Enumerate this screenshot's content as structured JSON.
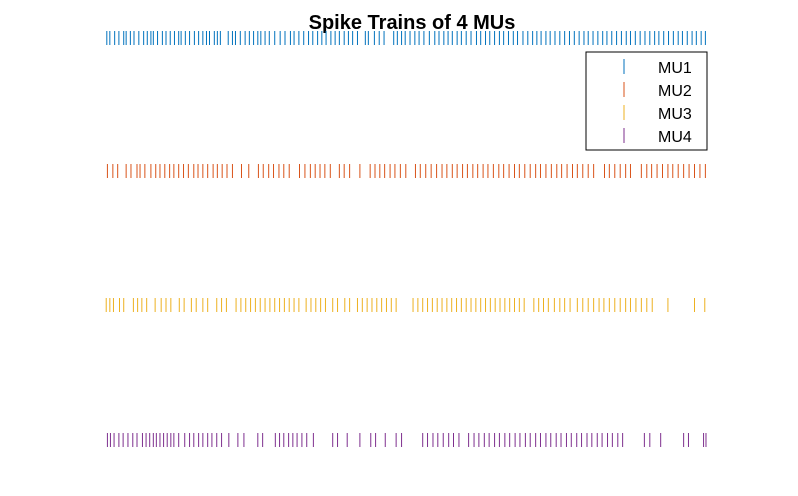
{
  "chart_data": {
    "type": "raster",
    "title": "Spike Trains of 4 MUs",
    "xlabel": "",
    "ylabel": "",
    "axes_visible": false,
    "grid": false,
    "legend_position": "top-right",
    "xlim": [
      0,
      100
    ],
    "series": [
      {
        "name": "MU1",
        "color": "#0072BD",
        "spikes": [
          0.3,
          0.8,
          1.6,
          2.3,
          3.1,
          3.5,
          4.2,
          4.8,
          5.6,
          6.4,
          7.0,
          7.6,
          8.0,
          8.7,
          9.5,
          10.1,
          10.8,
          11.5,
          12.2,
          12.6,
          13.3,
          14.0,
          14.8,
          15.5,
          16.2,
          16.8,
          17.3,
          18.1,
          18.6,
          19.1,
          20.4,
          21.1,
          21.6,
          22.4,
          23.2,
          23.9,
          24.6,
          25.3,
          25.8,
          26.5,
          27.2,
          28.1,
          29.0,
          29.8,
          30.7,
          31.3,
          32.1,
          32.9,
          33.7,
          34.4,
          35.2,
          35.9,
          36.6,
          37.4,
          38.1,
          38.8,
          39.6,
          40.3,
          41.0,
          41.8,
          43.1,
          43.6,
          44.6,
          45.4,
          46.2,
          47.8,
          48.4,
          49.1,
          49.7,
          50.5,
          51.3,
          52.0,
          52.8,
          53.7,
          54.6,
          55.3,
          56.1,
          56.8,
          57.5,
          58.3,
          59.0,
          59.8,
          60.6,
          61.5,
          62.2,
          63.0,
          63.7,
          64.5,
          65.3,
          66.0,
          66.8,
          67.6,
          68.3,
          69.2,
          70.0,
          70.8,
          71.5,
          72.2,
          73.0,
          73.7,
          74.5,
          75.3,
          76.1,
          76.9,
          77.7,
          78.5,
          79.3,
          80.0,
          80.8,
          81.6,
          82.4,
          83.1,
          83.9,
          84.7,
          85.5,
          86.3,
          87.0,
          87.8,
          88.6,
          89.4,
          90.2,
          91.0,
          91.7,
          92.5,
          93.3,
          94.1,
          94.9,
          95.6,
          96.4,
          97.2,
          97.9,
          98.7,
          99.4
        ]
      },
      {
        "name": "MU2",
        "color": "#D95319",
        "spikes": [
          0.4,
          1.3,
          2.1,
          3.5,
          4.3,
          5.3,
          5.8,
          6.6,
          7.6,
          8.4,
          9.1,
          9.9,
          10.7,
          11.4,
          12.2,
          13.0,
          13.8,
          14.7,
          15.4,
          16.2,
          17.0,
          17.9,
          18.6,
          19.4,
          20.2,
          21.1,
          22.6,
          23.8,
          25.4,
          26.2,
          27.1,
          27.9,
          28.8,
          29.6,
          30.5,
          32.2,
          33.1,
          34.0,
          34.8,
          35.6,
          36.4,
          37.3,
          38.8,
          39.6,
          40.5,
          42.2,
          43.9,
          44.7,
          45.5,
          46.3,
          47.2,
          48.0,
          48.9,
          49.8,
          51.4,
          52.2,
          53.1,
          54.0,
          54.9,
          55.8,
          56.6,
          57.5,
          58.3,
          59.2,
          60.0,
          60.9,
          61.7,
          62.6,
          63.4,
          64.3,
          65.2,
          66.0,
          66.9,
          67.8,
          68.6,
          69.5,
          70.4,
          71.3,
          72.1,
          73.0,
          73.9,
          74.8,
          75.6,
          76.5,
          77.4,
          78.2,
          79.1,
          80.0,
          80.9,
          82.7,
          83.5,
          84.4,
          85.3,
          86.2,
          87.0,
          88.8,
          89.7,
          90.5,
          91.4,
          92.3,
          93.2,
          94.0,
          94.9,
          95.8,
          96.7,
          97.6,
          98.5,
          99.4
        ]
      },
      {
        "name": "MU3",
        "color": "#EDB120",
        "spikes": [
          0.2,
          0.8,
          1.4,
          2.4,
          3.1,
          4.7,
          5.4,
          6.1,
          6.9,
          8.3,
          9.3,
          10.1,
          10.9,
          12.3,
          13.1,
          14.3,
          15.1,
          16.2,
          17.0,
          18.5,
          19.3,
          20.1,
          21.7,
          22.5,
          23.3,
          24.1,
          24.9,
          25.7,
          26.5,
          27.3,
          28.1,
          28.9,
          29.7,
          30.5,
          31.3,
          32.1,
          33.3,
          34.1,
          34.9,
          35.7,
          36.5,
          37.7,
          38.5,
          39.7,
          40.5,
          41.8,
          42.6,
          43.4,
          44.2,
          45.0,
          45.8,
          46.6,
          47.4,
          48.2,
          51.0,
          51.8,
          52.6,
          53.4,
          54.2,
          55.0,
          55.8,
          56.6,
          57.4,
          58.2,
          59.0,
          59.8,
          60.6,
          61.4,
          62.2,
          63.0,
          63.8,
          64.6,
          65.4,
          66.2,
          67.0,
          67.8,
          68.6,
          69.4,
          71.0,
          71.8,
          72.6,
          73.4,
          74.4,
          75.3,
          76.1,
          77.0,
          78.2,
          79.1,
          80.0,
          80.9,
          81.8,
          82.6,
          83.5,
          84.4,
          85.3,
          86.2,
          87.0,
          87.9,
          88.8,
          89.7,
          90.6,
          93.2,
          97.6,
          99.3
        ]
      },
      {
        "name": "MU4",
        "color": "#7E2F8E",
        "spikes": [
          0.4,
          0.9,
          1.5,
          2.3,
          3.0,
          3.8,
          4.6,
          5.3,
          6.2,
          6.8,
          7.4,
          8.0,
          8.5,
          9.1,
          9.7,
          10.3,
          10.9,
          11.4,
          12.2,
          13.2,
          14.0,
          14.7,
          15.5,
          16.2,
          17.0,
          17.7,
          18.5,
          19.3,
          20.5,
          22.0,
          23.0,
          25.3,
          26.1,
          28.2,
          28.9,
          29.6,
          30.4,
          31.1,
          31.8,
          32.6,
          33.4,
          34.5,
          37.7,
          38.5,
          40.1,
          42.2,
          44.0,
          44.8,
          46.4,
          48.2,
          49.1,
          52.6,
          53.4,
          54.3,
          55.1,
          56.0,
          56.9,
          57.7,
          58.6,
          60.2,
          61.1,
          61.9,
          62.8,
          63.6,
          64.5,
          65.3,
          66.2,
          67.0,
          67.9,
          68.7,
          69.6,
          70.4,
          71.3,
          72.1,
          73.0,
          73.8,
          74.7,
          75.5,
          76.4,
          77.2,
          78.1,
          78.9,
          79.8,
          80.6,
          81.5,
          82.3,
          83.2,
          84.0,
          84.9,
          85.7,
          89.3,
          90.2,
          92.0,
          95.8,
          96.6,
          99.1,
          99.5
        ]
      }
    ]
  }
}
